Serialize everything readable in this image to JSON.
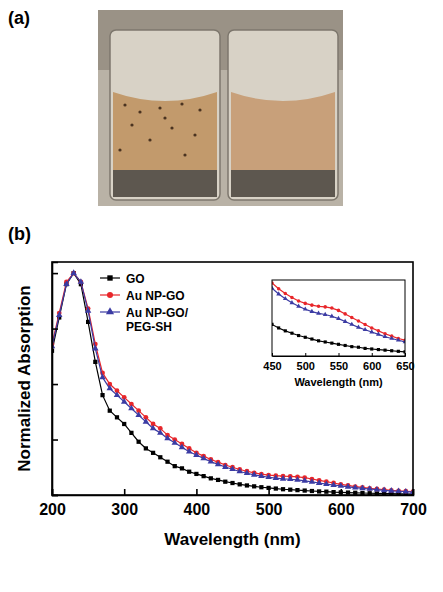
{
  "panel_labels": [
    "(a)",
    "(b)"
  ],
  "chart_data": [
    {
      "type": "line",
      "x_label": "Wavelength (nm)",
      "y_label": "Normalized Absorption",
      "x": [
        200,
        210,
        220,
        230,
        240,
        250,
        260,
        270,
        280,
        290,
        300,
        310,
        320,
        330,
        340,
        350,
        360,
        370,
        380,
        390,
        400,
        410,
        420,
        430,
        440,
        450,
        460,
        470,
        480,
        490,
        500,
        510,
        520,
        530,
        540,
        550,
        560,
        570,
        580,
        590,
        600,
        610,
        620,
        630,
        640,
        650,
        660,
        670,
        680,
        690,
        700
      ],
      "xlim": [
        200,
        700
      ],
      "xticks": [
        200,
        300,
        400,
        500,
        600,
        700
      ],
      "ylim": [
        0,
        1.05
      ],
      "yticks": [
        0,
        0.25,
        0.5,
        0.75,
        1
      ],
      "tick_labels": "x",
      "legend": "upper left",
      "series": [
        {
          "name": "GO",
          "color": "#000000",
          "marker": "square",
          "values": [
            0.65,
            0.8,
            0.95,
            1.0,
            0.95,
            0.78,
            0.6,
            0.45,
            0.38,
            0.35,
            0.32,
            0.28,
            0.24,
            0.21,
            0.19,
            0.17,
            0.15,
            0.13,
            0.12,
            0.105,
            0.095,
            0.085,
            0.075,
            0.068,
            0.06,
            0.054,
            0.048,
            0.043,
            0.039,
            0.035,
            0.032,
            0.029,
            0.026,
            0.024,
            0.022,
            0.02,
            0.018,
            0.016,
            0.015,
            0.013,
            0.012,
            0.011,
            0.01,
            0.009,
            0.008,
            0.007,
            0.006,
            0.006,
            0.005,
            0.005,
            0.004
          ]
        },
        {
          "name": "Au NP-GO",
          "color": "#e8262a",
          "marker": "circle",
          "values": [
            0.68,
            0.82,
            0.96,
            1.0,
            0.96,
            0.84,
            0.68,
            0.55,
            0.5,
            0.47,
            0.44,
            0.41,
            0.38,
            0.35,
            0.32,
            0.3,
            0.27,
            0.25,
            0.23,
            0.21,
            0.19,
            0.175,
            0.16,
            0.148,
            0.135,
            0.125,
            0.115,
            0.107,
            0.1,
            0.094,
            0.09,
            0.087,
            0.085,
            0.084,
            0.082,
            0.078,
            0.072,
            0.066,
            0.06,
            0.054,
            0.048,
            0.043,
            0.038,
            0.034,
            0.03,
            0.027,
            0.024,
            0.021,
            0.019,
            0.017,
            0.015
          ]
        },
        {
          "name": "Au NP-GO/PEG-SH",
          "color": "#3b3ba3",
          "marker": "triangle",
          "values": [
            0.67,
            0.81,
            0.95,
            1.0,
            0.96,
            0.83,
            0.66,
            0.53,
            0.48,
            0.45,
            0.42,
            0.39,
            0.36,
            0.33,
            0.3,
            0.28,
            0.255,
            0.235,
            0.215,
            0.195,
            0.18,
            0.165,
            0.15,
            0.138,
            0.126,
            0.116,
            0.106,
            0.098,
            0.091,
            0.085,
            0.08,
            0.076,
            0.073,
            0.071,
            0.068,
            0.064,
            0.059,
            0.054,
            0.049,
            0.045,
            0.041,
            0.037,
            0.033,
            0.03,
            0.027,
            0.024,
            0.021,
            0.019,
            0.017,
            0.015,
            0.013
          ]
        }
      ]
    },
    {
      "type": "line",
      "x_label": "Wavelength (nm)",
      "x": [
        450,
        460,
        470,
        480,
        490,
        500,
        510,
        520,
        530,
        540,
        550,
        560,
        570,
        580,
        590,
        600,
        610,
        620,
        630,
        640,
        650
      ],
      "xlim": [
        450,
        650
      ],
      "xticks": [
        450,
        500,
        550,
        600,
        650
      ],
      "ylim": [
        0,
        0.13
      ],
      "tick_labels": "x",
      "series": [
        {
          "color": "#000000",
          "marker": "square",
          "values": [
            0.054,
            0.048,
            0.043,
            0.039,
            0.035,
            0.032,
            0.029,
            0.026,
            0.024,
            0.022,
            0.02,
            0.018,
            0.016,
            0.015,
            0.013,
            0.012,
            0.011,
            0.01,
            0.009,
            0.008,
            0.007
          ]
        },
        {
          "color": "#e8262a",
          "marker": "circle",
          "values": [
            0.125,
            0.115,
            0.107,
            0.1,
            0.094,
            0.09,
            0.087,
            0.085,
            0.084,
            0.082,
            0.078,
            0.072,
            0.066,
            0.06,
            0.054,
            0.048,
            0.043,
            0.038,
            0.034,
            0.03,
            0.027
          ]
        },
        {
          "color": "#3b3ba3",
          "marker": "triangle",
          "values": [
            0.116,
            0.106,
            0.098,
            0.091,
            0.085,
            0.08,
            0.076,
            0.073,
            0.071,
            0.068,
            0.064,
            0.059,
            0.054,
            0.049,
            0.045,
            0.041,
            0.037,
            0.033,
            0.03,
            0.027,
            0.024
          ]
        }
      ]
    }
  ]
}
